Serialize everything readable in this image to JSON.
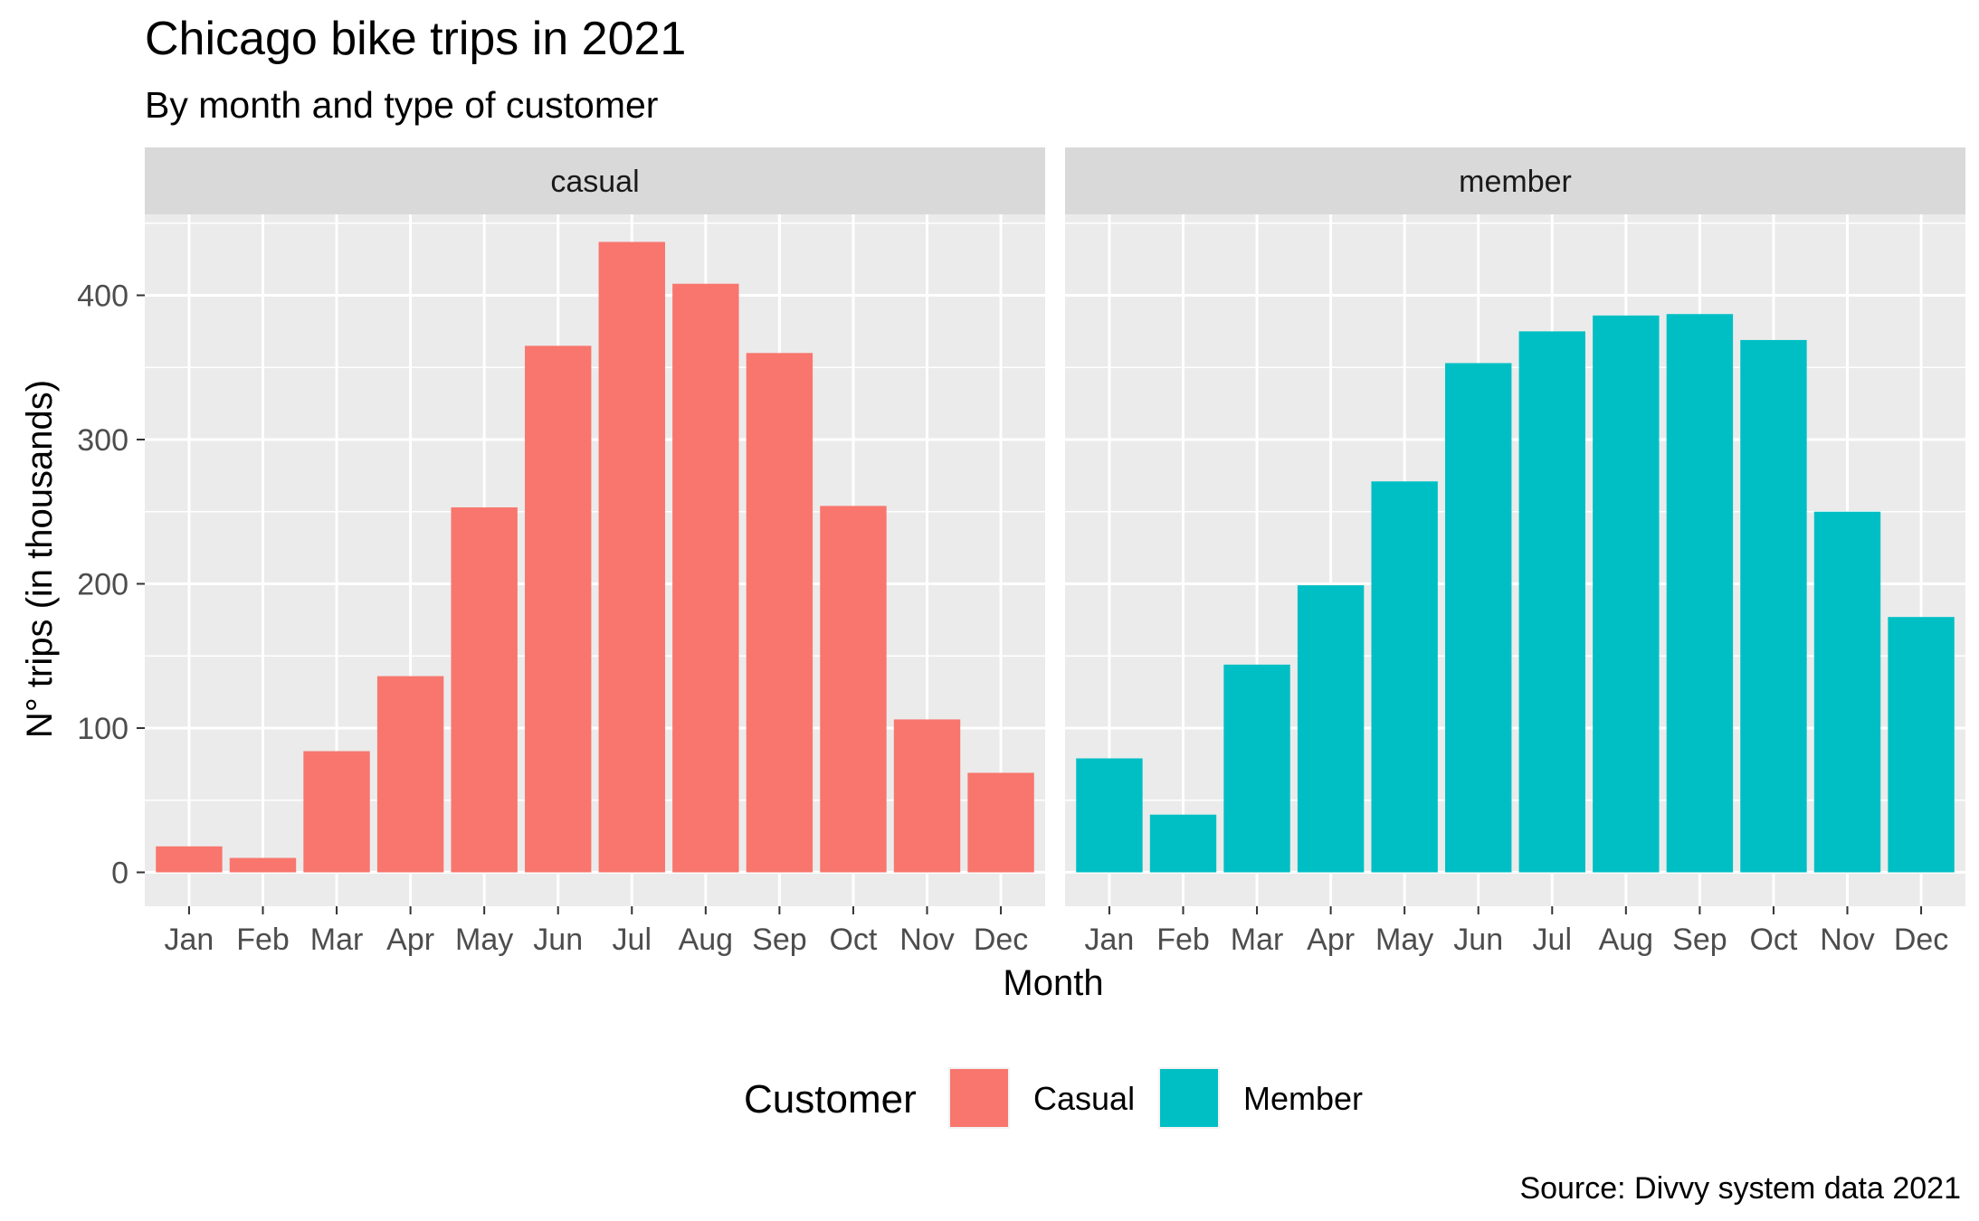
{
  "chart_data": {
    "type": "bar",
    "title": "Chicago bike trips in 2021",
    "subtitle": "By month and type of customer",
    "xlabel": "Month",
    "ylabel": "N° trips (in thousands)",
    "caption": "Source: Divvy system data 2021",
    "categories": [
      "Jan",
      "Feb",
      "Mar",
      "Apr",
      "May",
      "Jun",
      "Jul",
      "Aug",
      "Sep",
      "Oct",
      "Nov",
      "Dec"
    ],
    "ylim": [
      0,
      450
    ],
    "yticks": [
      0,
      100,
      200,
      300,
      400
    ],
    "grid": true,
    "legend": {
      "title": "Customer",
      "position": "bottom",
      "items": [
        {
          "label": "Casual",
          "color": "#F8766D"
        },
        {
          "label": "Member",
          "color": "#00BFC4"
        }
      ]
    },
    "panels": [
      {
        "strip": "casual",
        "color": "#F8766D",
        "values": [
          18,
          10,
          84,
          136,
          253,
          365,
          437,
          408,
          360,
          254,
          106,
          69
        ]
      },
      {
        "strip": "member",
        "color": "#00BFC4",
        "values": [
          79,
          40,
          144,
          199,
          271,
          353,
          375,
          386,
          387,
          369,
          250,
          177
        ]
      }
    ]
  }
}
